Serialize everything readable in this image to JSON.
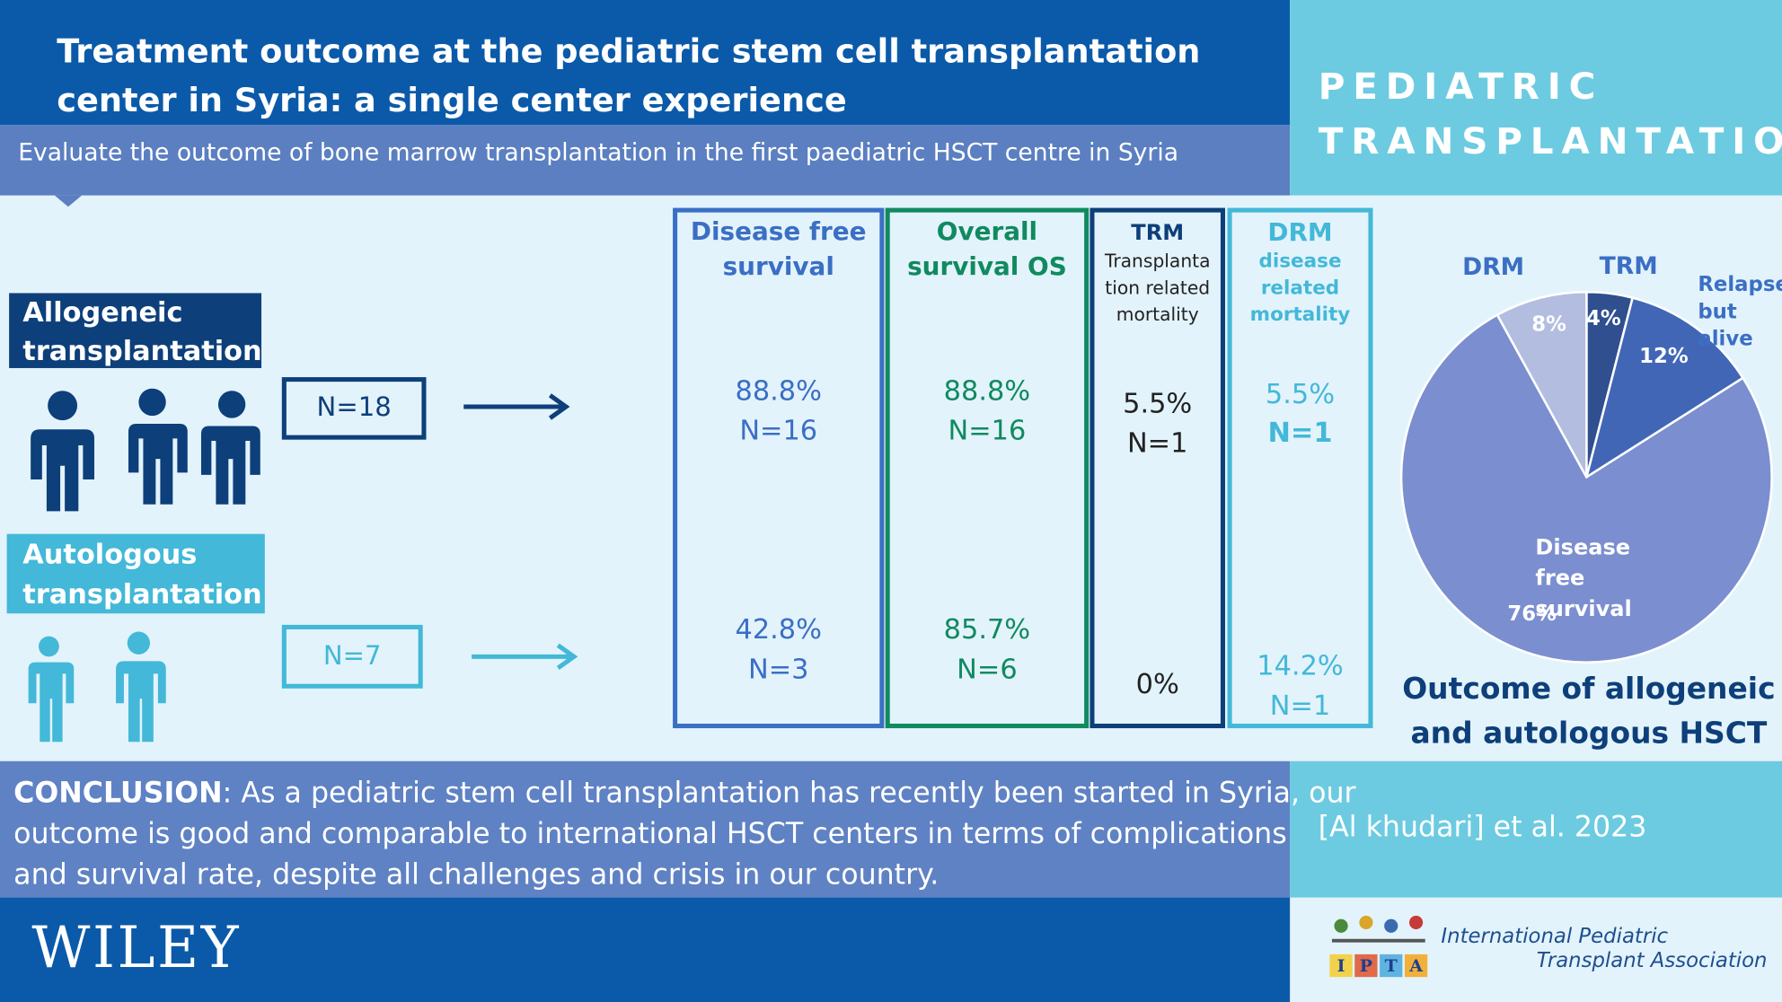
{
  "header": {
    "title_lines": [
      "Treatment outcome at the pediatric stem cell transplantation",
      "center in Syria: a single center experience"
    ],
    "subtitle": "Evaluate the outcome of bone marrow transplantation in the first paediatric HSCT centre in Syria",
    "banner_lines": [
      "PEDIATRIC",
      "TRANSPLANTATION"
    ]
  },
  "groups": [
    {
      "label_lines": [
        "Allogeneic",
        "transplantation"
      ],
      "n": "N=18"
    },
    {
      "label_lines": [
        "Autologous",
        "transplantation"
      ],
      "n": "N=7"
    }
  ],
  "columns": [
    {
      "title_lines": [
        "Disease free",
        "survival"
      ],
      "allogeneic": [
        "88.8%",
        "N=16"
      ],
      "autologous": [
        "42.8%",
        "N=3"
      ]
    },
    {
      "title_lines": [
        "Overall",
        "survival OS"
      ],
      "allogeneic": [
        "88.8%",
        "N=16"
      ],
      "autologous": [
        "85.7%",
        "N=6"
      ]
    },
    {
      "title_lines": [
        "TRM"
      ],
      "subtitle_lines": [
        "Transplanta",
        "tion related",
        "mortality"
      ],
      "allogeneic": [
        "5.5%",
        "N=1"
      ],
      "autologous": [
        "0%"
      ]
    },
    {
      "title_lines": [
        "DRM"
      ],
      "subtitle_lines": [
        "disease",
        "related",
        "mortality"
      ],
      "allogeneic": [
        "5.5%",
        "N=1"
      ],
      "autologous": [
        "14.2%",
        "N=1"
      ]
    }
  ],
  "chart_data": {
    "type": "pie",
    "title_lines": [
      "Outcome of allogeneic",
      "and autologous HSCT"
    ],
    "categories": [
      "TRM",
      "Relapse but alive",
      "Disease free survival",
      "DRM"
    ],
    "values": [
      4,
      12,
      76,
      8
    ],
    "value_labels": [
      "4%",
      "12%",
      "76%",
      "8%"
    ],
    "colors": [
      "#2f4f8f",
      "#4266b6",
      "#7b8ed0",
      "#b3bde0"
    ]
  },
  "conclusion": {
    "lead": "CONCLUSION",
    "lines": [
      ": As a pediatric stem cell transplantation has recently been started in Syria, our",
      "outcome is good and comparable to international HSCT centers in terms of complications",
      "and survival rate, despite all challenges and crisis in our country."
    ]
  },
  "citation": "[Al khudari] et al. 2023",
  "footer": {
    "publisher": "WILEY",
    "logo_letters": [
      "I",
      "P",
      "T",
      "A"
    ],
    "association_lines": [
      "International Pediatric",
      "Transplant Association"
    ]
  }
}
